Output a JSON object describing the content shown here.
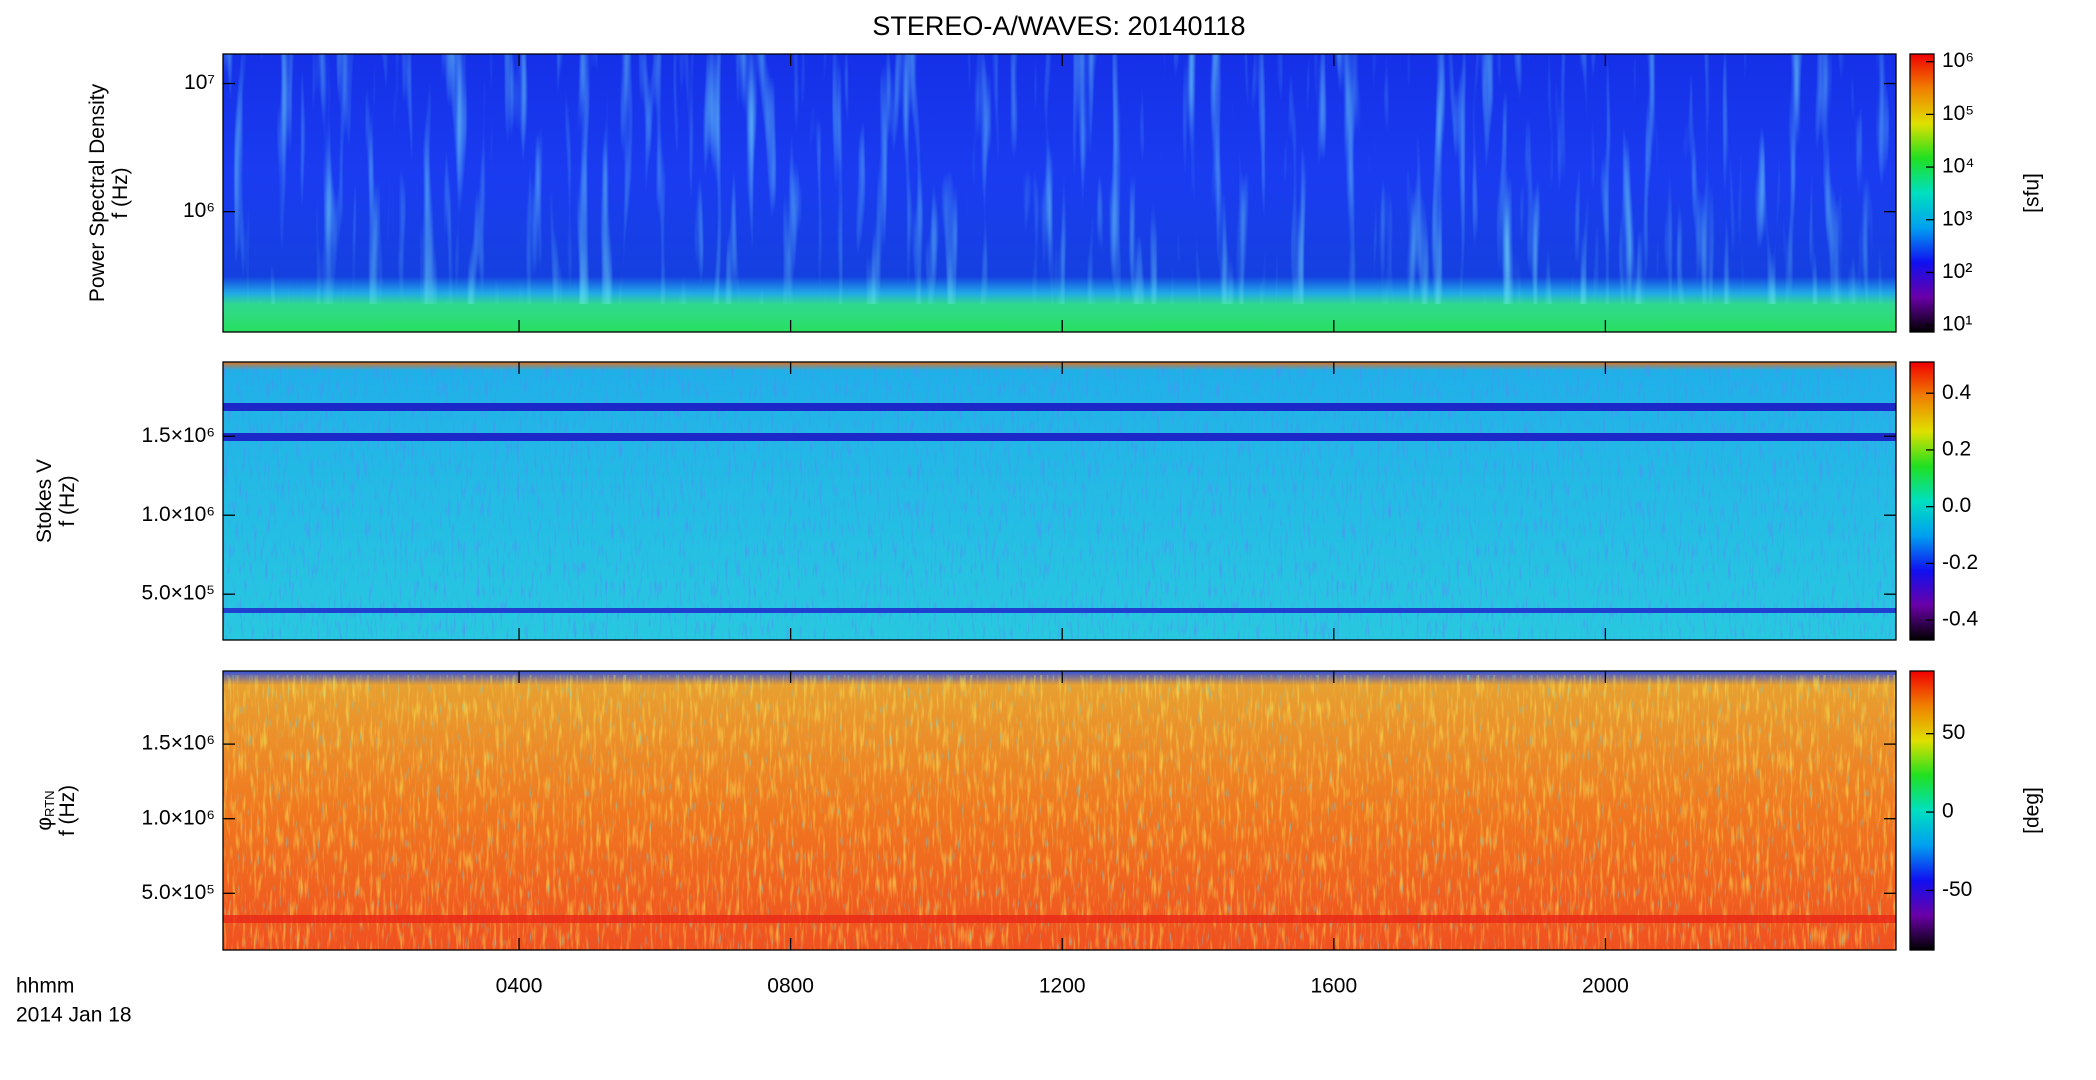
{
  "chart_data": [
    {
      "type": "heatmap",
      "title": "STEREO-A/WAVES: 20140118",
      "ylabel": [
        "Power Spectral Density",
        "f (Hz)"
      ],
      "log_y": true,
      "ylim": [
        115000,
        17000000
      ],
      "yticks": [
        {
          "value": 1000000,
          "label": "10⁶"
        },
        {
          "value": 10000000,
          "label": "10⁷"
        }
      ],
      "colormap": "rainbow",
      "colorbar": {
        "label": "[sfu]",
        "log": true,
        "zlim": [
          7.4,
          1400000
        ],
        "ticks": [
          {
            "value": 10,
            "label": "10¹"
          },
          {
            "value": 100,
            "label": "10²"
          },
          {
            "value": 1000,
            "label": "10³"
          },
          {
            "value": 10000,
            "label": "10⁴"
          },
          {
            "value": 100000,
            "label": "10⁵"
          },
          {
            "value": 1000000,
            "label": "10⁶"
          }
        ]
      }
    },
    {
      "type": "heatmap",
      "ylabel": [
        "Stokes V",
        "f (Hz)"
      ],
      "log_y": false,
      "ylim": [
        210000,
        1970000
      ],
      "yticks": [
        {
          "value": 500000,
          "label": "5.0×10⁵"
        },
        {
          "value": 1000000,
          "label": "1.0×10⁶"
        },
        {
          "value": 1500000,
          "label": "1.5×10⁶"
        }
      ],
      "colormap": "rainbow",
      "colorbar": {
        "label": null,
        "log": false,
        "zlim": [
          -0.47,
          0.51
        ],
        "ticks": [
          -0.4,
          -0.2,
          {
            "value": 0,
            "label": "0.0"
          },
          0.2,
          0.4
        ]
      }
    },
    {
      "type": "heatmap",
      "ylabel": [
        "φ",
        "f (Hz)"
      ],
      "ylabel_sub": "RTN",
      "log_y": false,
      "ylim": [
        120000,
        1990000
      ],
      "yticks": [
        {
          "value": 500000,
          "label": "5.0×10⁵"
        },
        {
          "value": 1000000,
          "label": "1.0×10⁶"
        },
        {
          "value": 1500000,
          "label": "1.5×10⁶"
        }
      ],
      "colormap": "rainbow",
      "colorbar": {
        "label": "[deg]",
        "log": false,
        "zlim": [
          -88,
          90
        ],
        "ticks": [
          -50,
          0,
          50
        ]
      },
      "xlim": [
        -0.36,
        24.28
      ],
      "xticks": [
        {
          "value": 4,
          "label": "0400"
        },
        {
          "value": 8,
          "label": "0800"
        },
        {
          "value": 12,
          "label": "1200"
        },
        {
          "value": 16,
          "label": "1600"
        },
        {
          "value": 20,
          "label": "2000"
        }
      ],
      "time_label": [
        "hhmm",
        "2014 Jan 18"
      ]
    }
  ]
}
